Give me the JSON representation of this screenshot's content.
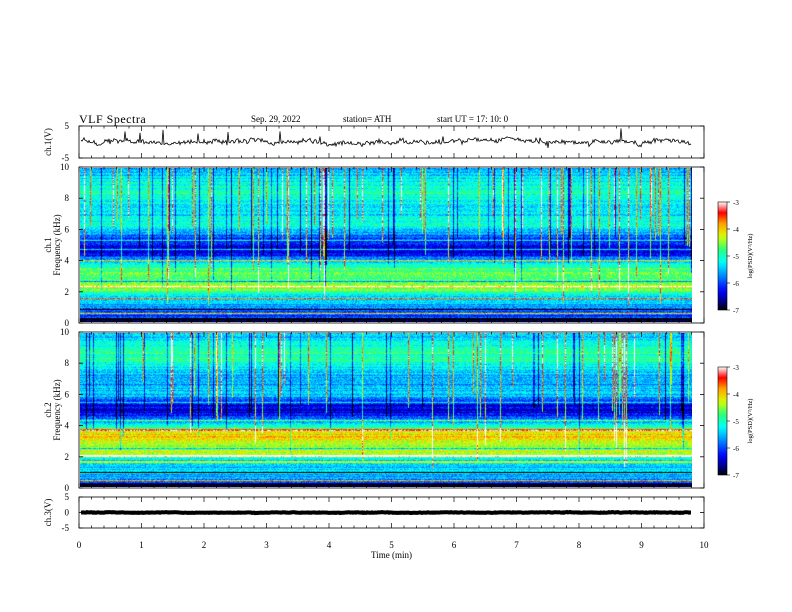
{
  "header": {
    "title": "VLF  Spectra",
    "date": "Sep. 29, 2022",
    "station": "station= ATH",
    "start": "start  UT  =   17: 10: 0"
  },
  "chart_data": [
    {
      "type": "line",
      "name": "ch1-waveform",
      "ylabel": "ch.1(V)",
      "ylim": [
        -5,
        5
      ],
      "yticks": [
        "5",
        "-5"
      ],
      "xlim": [
        0,
        10
      ],
      "data_end": 9.83,
      "level": 0.1,
      "spread": 1.2,
      "color": "#000000"
    },
    {
      "type": "heatmap",
      "name": "ch1-spectrogram",
      "ylabel_line1": "ch.1",
      "ylabel_line2": "Frequency  (kHz)",
      "ylim": [
        0,
        10
      ],
      "yticks": [
        "0",
        "2",
        "4",
        "6",
        "8",
        "10"
      ],
      "xlim": [
        0,
        10
      ],
      "data_end": 9.83,
      "colorbar": {
        "label": "log(PSD)(V²/Hz)",
        "range": [
          -7,
          -3
        ],
        "ticks": [
          "-3",
          "-4",
          "-5",
          "-6",
          "-7"
        ],
        "colors": [
          "#000000",
          "#0000ff",
          "#00a0ff",
          "#00ffff",
          "#00ff80",
          "#ffff00",
          "#ff0000",
          "#ffffff"
        ]
      }
    },
    {
      "type": "heatmap",
      "name": "ch2-spectrogram",
      "ylabel_line1": "ch.2",
      "ylabel_line2": "Frequency  (kHz)",
      "ylim": [
        0,
        10
      ],
      "yticks": [
        "0",
        "2",
        "4",
        "6",
        "8",
        "10"
      ],
      "xlim": [
        0,
        10
      ],
      "data_end": 9.83,
      "colorbar": {
        "label": "log(PSD)(V²/Hz)",
        "range": [
          -7,
          -3
        ],
        "ticks": [
          "-3",
          "-4",
          "-5",
          "-6",
          "-7"
        ],
        "colors": [
          "#000000",
          "#0000ff",
          "#00a0ff",
          "#00ffff",
          "#00ff80",
          "#ffff00",
          "#ff0000",
          "#ffffff"
        ]
      }
    },
    {
      "type": "line",
      "name": "ch3-waveform",
      "ylabel": "ch.3(V)",
      "ylim": [
        -5,
        5
      ],
      "yticks": [
        "5",
        "0",
        "-5"
      ],
      "xlim": [
        0,
        10
      ],
      "data_end": 9.83,
      "level": 0,
      "spread": 0.15,
      "color": "#000000"
    }
  ],
  "xaxis": {
    "label": "Time  (min)",
    "ticks": [
      "0",
      "1",
      "2",
      "3",
      "4",
      "5",
      "6",
      "7",
      "8",
      "9",
      "10"
    ]
  }
}
